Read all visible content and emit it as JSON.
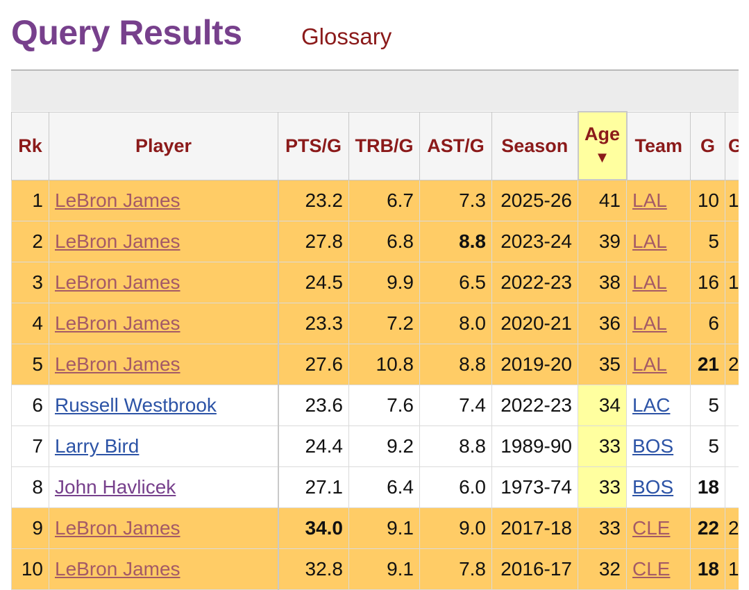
{
  "page": {
    "title": "Query Results",
    "glossary_link": "Glossary"
  },
  "table": {
    "columns": [
      "Rk",
      "Player",
      "PTS/G",
      "TRB/G",
      "AST/G",
      "Season",
      "Age",
      "Team",
      "G",
      "G"
    ],
    "sort_indicator": "▼",
    "rows": [
      {
        "rk": "1",
        "player": "LeBron James",
        "pts": "23.2",
        "trb": "6.7",
        "ast": "7.3",
        "season": "2025-26",
        "age": "41",
        "team": "LAL",
        "g": "10",
        "gs": "1"
      },
      {
        "rk": "2",
        "player": "LeBron James",
        "pts": "27.8",
        "trb": "6.8",
        "ast": "8.8",
        "season": "2023-24",
        "age": "39",
        "team": "LAL",
        "g": "5",
        "gs": ""
      },
      {
        "rk": "3",
        "player": "LeBron James",
        "pts": "24.5",
        "trb": "9.9",
        "ast": "6.5",
        "season": "2022-23",
        "age": "38",
        "team": "LAL",
        "g": "16",
        "gs": "1"
      },
      {
        "rk": "4",
        "player": "LeBron James",
        "pts": "23.3",
        "trb": "7.2",
        "ast": "8.0",
        "season": "2020-21",
        "age": "36",
        "team": "LAL",
        "g": "6",
        "gs": ""
      },
      {
        "rk": "5",
        "player": "LeBron James",
        "pts": "27.6",
        "trb": "10.8",
        "ast": "8.8",
        "season": "2019-20",
        "age": "35",
        "team": "LAL",
        "g": "21",
        "gs": "2"
      },
      {
        "rk": "6",
        "player": "Russell Westbrook",
        "pts": "23.6",
        "trb": "7.6",
        "ast": "7.4",
        "season": "2022-23",
        "age": "34",
        "team": "LAC",
        "g": "5",
        "gs": ""
      },
      {
        "rk": "7",
        "player": "Larry Bird",
        "pts": "24.4",
        "trb": "9.2",
        "ast": "8.8",
        "season": "1989-90",
        "age": "33",
        "team": "BOS",
        "g": "5",
        "gs": ""
      },
      {
        "rk": "8",
        "player": "John Havlicek",
        "pts": "27.1",
        "trb": "6.4",
        "ast": "6.0",
        "season": "1973-74",
        "age": "33",
        "team": "BOS",
        "g": "18",
        "gs": ""
      },
      {
        "rk": "9",
        "player": "LeBron James",
        "pts": "34.0",
        "trb": "9.1",
        "ast": "9.0",
        "season": "2017-18",
        "age": "33",
        "team": "CLE",
        "g": "22",
        "gs": "2"
      },
      {
        "rk": "10",
        "player": "LeBron James",
        "pts": "32.8",
        "trb": "9.1",
        "ast": "7.8",
        "season": "2016-17",
        "age": "32",
        "team": "CLE",
        "g": "18",
        "gs": "1"
      }
    ]
  },
  "colors": {
    "title": "#77408c",
    "header_text": "#8b1a1a",
    "highlight_row": "#ffcc66",
    "sorted_column": "#ffff9f"
  }
}
